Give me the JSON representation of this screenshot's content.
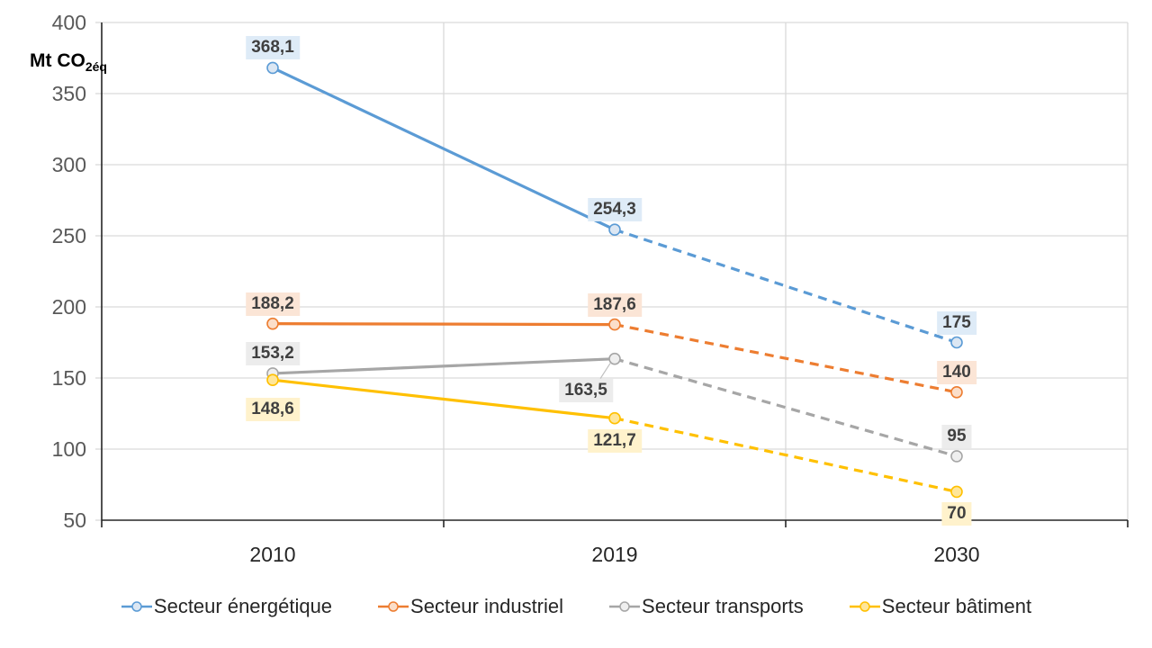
{
  "chart_data": {
    "type": "line",
    "title": "",
    "ylabel_main": "Mt CO",
    "ylabel_sub": "2éq",
    "categories": [
      "2010",
      "2019",
      "2030"
    ],
    "y_ticks": [
      400,
      350,
      300,
      250,
      200,
      150,
      100,
      50
    ],
    "ylim": [
      50,
      400
    ],
    "grid": "horizontal-and-category-boundaries",
    "legend_position": "bottom-center",
    "dashed_from_index": 1,
    "colors": {
      "gridline": "#d9d9d9",
      "axis_line": "#262626",
      "y_tick_text": "#595959",
      "x_tick_text": "#262626",
      "data_label_text": "#404040",
      "legend_text": "#262626",
      "leader_line": "#bfbfbf"
    },
    "series": [
      {
        "name": "Secteur énergétique",
        "color": "#5b9bd5",
        "marker_fill": "#dce7f3",
        "label_bg": "#deebf7",
        "values": [
          368.1,
          254.3,
          175
        ],
        "labels": [
          "368,1",
          "254,3",
          "175"
        ],
        "label_pos": [
          "above",
          "above",
          "above"
        ]
      },
      {
        "name": "Secteur industriel",
        "color": "#ed7d31",
        "marker_fill": "#fbdec9",
        "label_bg": "#fbe5d6",
        "values": [
          188.2,
          187.6,
          140
        ],
        "labels": [
          "188,2",
          "187,6",
          "140"
        ],
        "label_pos": [
          "above",
          "above",
          "above"
        ]
      },
      {
        "name": "Secteur transports",
        "color": "#a6a6a6",
        "marker_fill": "#efefef",
        "label_bg": "#ececec",
        "values": [
          153.2,
          163.5,
          95
        ],
        "labels": [
          "153,2",
          "163,5",
          "95"
        ],
        "label_pos": [
          "above",
          "leader",
          "above"
        ]
      },
      {
        "name": "Secteur bâtiment",
        "color": "#ffc000",
        "marker_fill": "#ffe699",
        "label_bg": "#fff2cc",
        "values": [
          148.6,
          121.7,
          70
        ],
        "labels": [
          "148,6",
          "121,7",
          "70"
        ],
        "label_pos": [
          "below-far",
          "below",
          "below"
        ]
      }
    ]
  }
}
